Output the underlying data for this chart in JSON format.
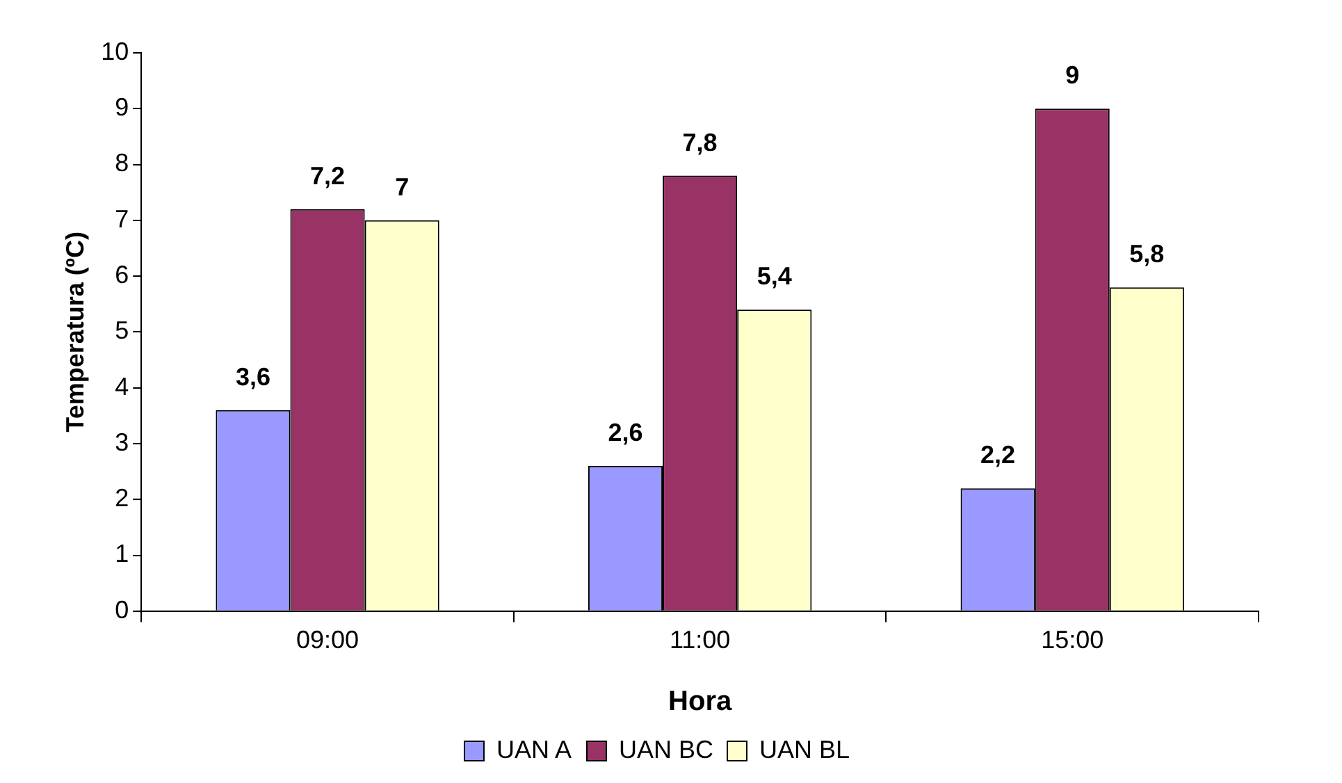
{
  "chart_data": {
    "type": "bar",
    "xlabel": "Hora",
    "ylabel": "Temperatura (ºC)",
    "categories": [
      "09:00",
      "11:00",
      "15:00"
    ],
    "series": [
      {
        "name": "UAN A",
        "color": "#9999ff",
        "values": [
          3.6,
          2.6,
          2.2
        ],
        "value_labels": [
          "3,6",
          "2,6",
          "2,2"
        ]
      },
      {
        "name": "UAN BC",
        "color": "#993366",
        "values": [
          7.2,
          7.8,
          9
        ],
        "value_labels": [
          "7,2",
          "7,8",
          "9"
        ]
      },
      {
        "name": "UAN BL",
        "color": "#ffffcc",
        "values": [
          7,
          5.4,
          5.8
        ],
        "value_labels": [
          "7",
          "5,4",
          "5,8"
        ]
      }
    ],
    "ylim": [
      0,
      10
    ],
    "yticks": [
      0,
      1,
      2,
      3,
      4,
      5,
      6,
      7,
      8,
      9,
      10
    ],
    "grid": false,
    "legend": "bottom"
  }
}
